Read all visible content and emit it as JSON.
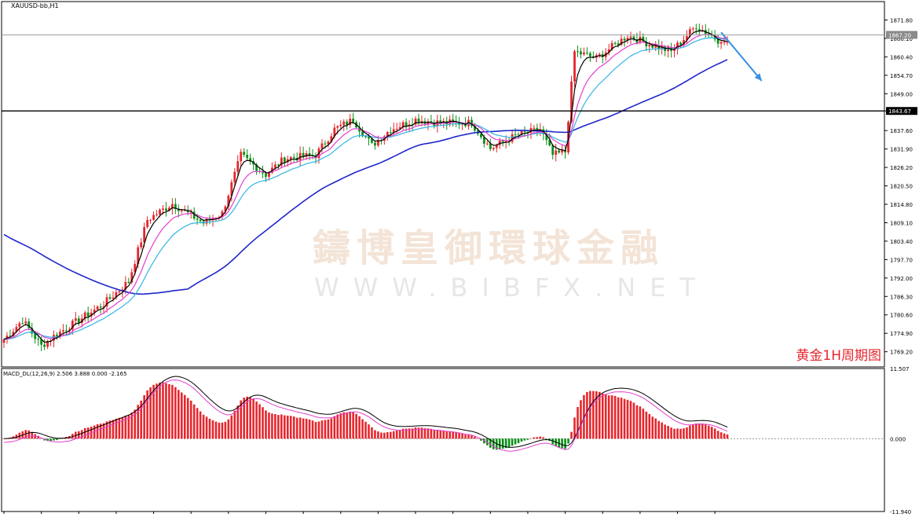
{
  "symbol": "XAUUSD-bb,H1",
  "watermark": {
    "cn": "鑄博皇御環球金融",
    "en": "WWW.BIBFX.NET"
  },
  "caption": "黄金1H周期图",
  "colors": {
    "bull": "#e6262d",
    "bear": "#0a8f17",
    "ema_fast": "#000000",
    "ema_mid": "#e23fd0",
    "ema_slow": "#33b5e5",
    "ma_long": "#1f27c9",
    "arrow": "#3a8fe0",
    "macd_pos": "#e6262d",
    "macd_neg": "#0a8f17",
    "macd_line": "#000000",
    "signal_line": "#e23fd0"
  },
  "chart_data": [
    {
      "type": "candlestick",
      "name": "XAUUSD-bb,H1",
      "ylim": [
        1764.5,
        1877.5
      ],
      "yticks": [
        "1871.80",
        "1866.10",
        "1860.40",
        "1854.70",
        "1849.00",
        "1843.67",
        "1837.60",
        "1831.90",
        "1826.20",
        "1820.50",
        "1814.80",
        "1809.10",
        "1803.40",
        "1797.70",
        "1792.00",
        "1786.30",
        "1780.60",
        "1774.90",
        "1769.20"
      ],
      "current_price": "1867.20",
      "resistance_level": "1843.67",
      "bar_count": 233,
      "anchors": [
        [
          0,
          1773
        ],
        [
          6,
          1779
        ],
        [
          12,
          1771
        ],
        [
          16,
          1774
        ],
        [
          24,
          1779
        ],
        [
          32,
          1784
        ],
        [
          40,
          1791
        ],
        [
          46,
          1810
        ],
        [
          54,
          1815
        ],
        [
          64,
          1809
        ],
        [
          70,
          1812
        ],
        [
          76,
          1830
        ],
        [
          84,
          1824
        ],
        [
          90,
          1829
        ],
        [
          100,
          1830
        ],
        [
          106,
          1838
        ],
        [
          112,
          1841
        ],
        [
          118,
          1833
        ],
        [
          124,
          1838
        ],
        [
          132,
          1841
        ],
        [
          140,
          1840
        ],
        [
          150,
          1840
        ],
        [
          156,
          1832
        ],
        [
          164,
          1836
        ],
        [
          172,
          1838
        ],
        [
          176,
          1830
        ],
        [
          180,
          1831
        ],
        [
          183,
          1862
        ],
        [
          190,
          1860
        ],
        [
          200,
          1867
        ],
        [
          208,
          1864
        ],
        [
          214,
          1862
        ],
        [
          222,
          1870
        ],
        [
          230,
          1865
        ]
      ],
      "overlays": [
        {
          "name": "EMA fast",
          "color": "#000000"
        },
        {
          "name": "EMA mid",
          "color": "#e23fd0"
        },
        {
          "name": "EMA slow",
          "color": "#33b5e5"
        },
        {
          "name": "MA long",
          "color": "#1f27c9"
        }
      ],
      "forecast_arrow": {
        "from": [
          230,
          1868
        ],
        "to": [
          243,
          1853
        ]
      }
    },
    {
      "type": "macd",
      "name": "MACD_DL(12,26,9) 2.506 3.888 0.000 -2.165",
      "ylim": [
        -11.94,
        11.507
      ],
      "yticks": [
        "11.507",
        "0.000",
        "-11.940"
      ]
    }
  ]
}
